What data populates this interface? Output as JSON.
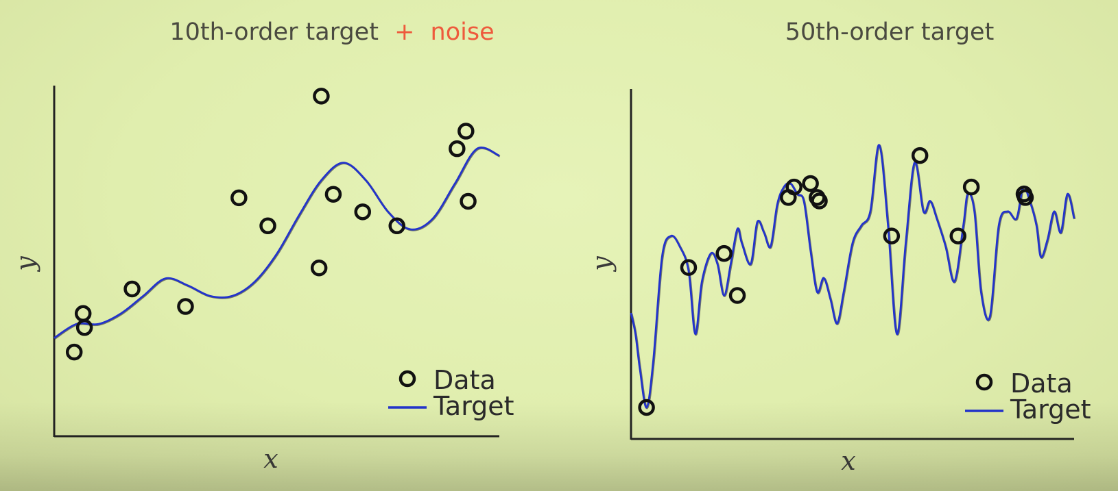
{
  "chart_data": [
    {
      "type": "scatter",
      "title": "10th-order target",
      "title_connector": "+",
      "title_accent": "noise",
      "accent_color": "#ee5a3c",
      "xlabel": "x",
      "ylabel": "y",
      "xlim": [
        0,
        1
      ],
      "ylim": [
        0,
        1
      ],
      "legend_position": "bottom-right",
      "series": [
        {
          "name": "Data",
          "marker": "open-circle",
          "color": "#111111",
          "x": [
            0.045,
            0.065,
            0.068,
            0.175,
            0.295,
            0.415,
            0.48,
            0.595,
            0.6,
            0.627,
            0.693,
            0.77,
            0.905,
            0.925,
            0.93
          ],
          "y": [
            0.24,
            0.35,
            0.31,
            0.42,
            0.37,
            0.68,
            0.6,
            0.48,
            0.97,
            0.69,
            0.64,
            0.6,
            0.82,
            0.87,
            0.67
          ]
        },
        {
          "name": "Target",
          "type": "line",
          "color": "#2233cc",
          "x": [
            0,
            0.05,
            0.1,
            0.15,
            0.2,
            0.25,
            0.3,
            0.35,
            0.4,
            0.45,
            0.5,
            0.55,
            0.6,
            0.65,
            0.7,
            0.75,
            0.8,
            0.85,
            0.9,
            0.95,
            1.0
          ],
          "y": [
            0.28,
            0.32,
            0.32,
            0.35,
            0.4,
            0.45,
            0.43,
            0.4,
            0.4,
            0.44,
            0.52,
            0.63,
            0.73,
            0.78,
            0.73,
            0.64,
            0.59,
            0.62,
            0.72,
            0.82,
            0.8
          ]
        }
      ]
    },
    {
      "type": "scatter",
      "title": "50th-order target",
      "xlabel": "x",
      "ylabel": "y",
      "xlim": [
        0,
        1
      ],
      "ylim": [
        0,
        1
      ],
      "legend_position": "bottom-right",
      "series": [
        {
          "name": "Data",
          "marker": "open-circle",
          "color": "#111111",
          "x": [
            0.035,
            0.13,
            0.21,
            0.24,
            0.355,
            0.368,
            0.405,
            0.42,
            0.425,
            0.588,
            0.652,
            0.738,
            0.768,
            0.887,
            0.89
          ],
          "y": [
            0.09,
            0.49,
            0.53,
            0.41,
            0.69,
            0.72,
            0.73,
            0.69,
            0.68,
            0.58,
            0.81,
            0.58,
            0.72,
            0.7,
            0.69
          ]
        },
        {
          "name": "Target",
          "type": "line",
          "color": "#2233cc",
          "x": [
            0,
            0.01,
            0.02,
            0.035,
            0.05,
            0.07,
            0.09,
            0.11,
            0.13,
            0.145,
            0.16,
            0.18,
            0.195,
            0.21,
            0.225,
            0.24,
            0.25,
            0.27,
            0.285,
            0.3,
            0.315,
            0.33,
            0.345,
            0.36,
            0.375,
            0.39,
            0.405,
            0.42,
            0.435,
            0.45,
            0.465,
            0.48,
            0.5,
            0.52,
            0.54,
            0.56,
            0.58,
            0.6,
            0.62,
            0.64,
            0.66,
            0.675,
            0.69,
            0.71,
            0.73,
            0.75,
            0.76,
            0.775,
            0.79,
            0.81,
            0.83,
            0.85,
            0.87,
            0.885,
            0.9,
            0.915,
            0.925,
            0.94,
            0.955,
            0.97,
            0.985,
            1.0
          ],
          "y": [
            0.36,
            0.3,
            0.2,
            0.09,
            0.22,
            0.52,
            0.58,
            0.55,
            0.48,
            0.3,
            0.45,
            0.53,
            0.5,
            0.41,
            0.5,
            0.6,
            0.56,
            0.5,
            0.62,
            0.59,
            0.55,
            0.67,
            0.72,
            0.73,
            0.7,
            0.68,
            0.54,
            0.42,
            0.46,
            0.4,
            0.33,
            0.42,
            0.56,
            0.61,
            0.65,
            0.84,
            0.61,
            0.3,
            0.56,
            0.79,
            0.65,
            0.68,
            0.63,
            0.55,
            0.45,
            0.61,
            0.7,
            0.65,
            0.42,
            0.35,
            0.61,
            0.65,
            0.63,
            0.72,
            0.68,
            0.61,
            0.52,
            0.57,
            0.65,
            0.59,
            0.7,
            0.63
          ]
        }
      ]
    }
  ]
}
